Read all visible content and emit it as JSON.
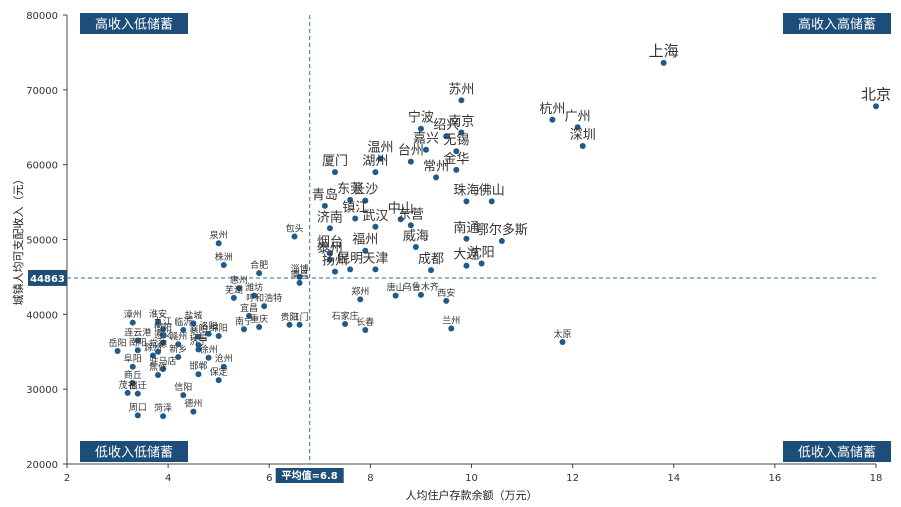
{
  "colors": {
    "point": "#1f5a8c",
    "label_box": "#1d4e7a",
    "ref_line": "#2e6fa3"
  },
  "chart_data": {
    "type": "scatter",
    "xlabel": "人均住户存款余额（万元）",
    "ylabel": "城镇人均可支配收入（元）",
    "xlim": [
      2,
      18
    ],
    "ylim": [
      20000,
      80000
    ],
    "xticks": [
      2,
      4,
      6,
      8,
      10,
      12,
      14,
      16,
      18
    ],
    "yticks": [
      20000,
      30000,
      40000,
      50000,
      60000,
      70000,
      80000
    ],
    "grid": false,
    "ref_lines": {
      "x": 6.8,
      "x_label": "平均值=6.8",
      "y": 44863,
      "y_label": "44863"
    },
    "quadrants": {
      "top_left": "高收入低储蓄",
      "top_right": "高收入高储蓄",
      "bottom_left": "低收入低储蓄",
      "bottom_right": "低收入高储蓄"
    },
    "points": [
      {
        "label": "上海",
        "x": 13.8,
        "y": 73600,
        "size": "large"
      },
      {
        "label": "北京",
        "x": 18.0,
        "y": 67800,
        "size": "large"
      },
      {
        "label": "苏州",
        "x": 9.8,
        "y": 68600,
        "size": "medium"
      },
      {
        "label": "杭州",
        "x": 11.6,
        "y": 66000,
        "size": "medium"
      },
      {
        "label": "广州",
        "x": 12.1,
        "y": 65000,
        "size": "medium"
      },
      {
        "label": "深圳",
        "x": 12.2,
        "y": 62500,
        "size": "medium"
      },
      {
        "label": "宁波",
        "x": 9.0,
        "y": 64800,
        "size": "medium"
      },
      {
        "label": "绍兴",
        "x": 9.5,
        "y": 63800,
        "size": "medium"
      },
      {
        "label": "南京",
        "x": 9.8,
        "y": 64300,
        "size": "medium"
      },
      {
        "label": "嘉兴",
        "x": 9.1,
        "y": 62000,
        "size": "medium"
      },
      {
        "label": "无锡",
        "x": 9.7,
        "y": 61800,
        "size": "medium"
      },
      {
        "label": "温州",
        "x": 8.2,
        "y": 60800,
        "size": "medium"
      },
      {
        "label": "台州",
        "x": 8.8,
        "y": 60400,
        "size": "medium"
      },
      {
        "label": "湖州",
        "x": 8.1,
        "y": 59000,
        "size": "medium"
      },
      {
        "label": "常州",
        "x": 9.3,
        "y": 58300,
        "size": "medium"
      },
      {
        "label": "金华",
        "x": 9.7,
        "y": 59300,
        "size": "medium"
      },
      {
        "label": "厦门",
        "x": 7.3,
        "y": 59000,
        "size": "medium"
      },
      {
        "label": "东莞",
        "x": 7.6,
        "y": 55300,
        "size": "medium"
      },
      {
        "label": "长沙",
        "x": 7.9,
        "y": 55200,
        "size": "medium"
      },
      {
        "label": "青岛",
        "x": 7.1,
        "y": 54500,
        "size": "medium"
      },
      {
        "label": "珠海",
        "x": 9.9,
        "y": 55100,
        "size": "medium"
      },
      {
        "label": "佛山",
        "x": 10.4,
        "y": 55100,
        "size": "medium"
      },
      {
        "label": "镇江",
        "x": 7.7,
        "y": 52800,
        "size": "medium"
      },
      {
        "label": "中山",
        "x": 8.6,
        "y": 52700,
        "size": "medium"
      },
      {
        "label": "济南",
        "x": 7.2,
        "y": 51500,
        "size": "medium"
      },
      {
        "label": "武汉",
        "x": 8.1,
        "y": 51700,
        "size": "medium"
      },
      {
        "label": "东营",
        "x": 8.8,
        "y": 51900,
        "size": "medium"
      },
      {
        "label": "南通",
        "x": 9.9,
        "y": 50100,
        "size": "medium"
      },
      {
        "label": "鄂尔多斯",
        "x": 10.6,
        "y": 49800,
        "size": "medium"
      },
      {
        "label": "烟台",
        "x": 7.2,
        "y": 48200,
        "size": "medium"
      },
      {
        "label": "福州",
        "x": 7.9,
        "y": 48500,
        "size": "medium"
      },
      {
        "label": "威海",
        "x": 8.9,
        "y": 49000,
        "size": "medium"
      },
      {
        "label": "泰州",
        "x": 7.2,
        "y": 47300,
        "size": "medium"
      },
      {
        "label": "昆明",
        "x": 7.6,
        "y": 46000,
        "size": "medium"
      },
      {
        "label": "天津",
        "x": 8.1,
        "y": 46000,
        "size": "medium"
      },
      {
        "label": "成都",
        "x": 9.2,
        "y": 45900,
        "size": "medium"
      },
      {
        "label": "大连",
        "x": 9.9,
        "y": 46500,
        "size": "medium"
      },
      {
        "label": "沈阳",
        "x": 10.2,
        "y": 46800,
        "size": "medium"
      },
      {
        "label": "扬州",
        "x": 7.3,
        "y": 45700,
        "size": "medium"
      },
      {
        "label": "包头",
        "x": 6.5,
        "y": 50400,
        "size": "small"
      },
      {
        "label": "淄博",
        "x": 6.6,
        "y": 45000,
        "size": "small"
      },
      {
        "label": "南昌",
        "x": 6.6,
        "y": 44200,
        "size": "small"
      },
      {
        "label": "泉州",
        "x": 5.0,
        "y": 49500,
        "size": "small"
      },
      {
        "label": "株洲",
        "x": 5.1,
        "y": 46600,
        "size": "small"
      },
      {
        "label": "合肥",
        "x": 5.8,
        "y": 45500,
        "size": "small"
      },
      {
        "label": "惠州",
        "x": 5.4,
        "y": 43500,
        "size": "small"
      },
      {
        "label": "芜湖",
        "x": 5.3,
        "y": 42200,
        "size": "small"
      },
      {
        "label": "潍坊",
        "x": 5.7,
        "y": 42500,
        "size": "small"
      },
      {
        "label": "呼和浩特",
        "x": 5.9,
        "y": 41100,
        "size": "small"
      },
      {
        "label": "宜昌",
        "x": 5.6,
        "y": 39800,
        "size": "small"
      },
      {
        "label": "江门",
        "x": 6.6,
        "y": 38600,
        "size": "small"
      },
      {
        "label": "贵阳",
        "x": 6.4,
        "y": 38600,
        "size": "small"
      },
      {
        "label": "南宁",
        "x": 5.5,
        "y": 38000,
        "size": "small"
      },
      {
        "label": "重庆",
        "x": 5.8,
        "y": 38300,
        "size": "small"
      },
      {
        "label": "石家庄",
        "x": 7.5,
        "y": 38700,
        "size": "small"
      },
      {
        "label": "郑州",
        "x": 7.8,
        "y": 42000,
        "size": "small"
      },
      {
        "label": "长春",
        "x": 7.9,
        "y": 37900,
        "size": "small"
      },
      {
        "label": "唐山",
        "x": 8.5,
        "y": 42500,
        "size": "small"
      },
      {
        "label": "乌鲁木齐",
        "x": 9.0,
        "y": 42600,
        "size": "small"
      },
      {
        "label": "西安",
        "x": 9.5,
        "y": 41800,
        "size": "small"
      },
      {
        "label": "兰州",
        "x": 9.6,
        "y": 38100,
        "size": "small"
      },
      {
        "label": "太原",
        "x": 11.8,
        "y": 36300,
        "size": "small"
      },
      {
        "label": "淮安",
        "x": 3.8,
        "y": 39000,
        "size": "small"
      },
      {
        "label": "盐城",
        "x": 4.5,
        "y": 38800,
        "size": "small"
      },
      {
        "label": "漳州",
        "x": 3.3,
        "y": 38900,
        "size": "small"
      },
      {
        "label": "九江",
        "x": 3.9,
        "y": 38000,
        "size": "small"
      },
      {
        "label": "临沂",
        "x": 4.3,
        "y": 37900,
        "size": "small"
      },
      {
        "label": "衡阳",
        "x": 3.9,
        "y": 37200,
        "size": "small"
      },
      {
        "label": "洛阳",
        "x": 4.8,
        "y": 37400,
        "size": "small"
      },
      {
        "label": "襄阳",
        "x": 4.6,
        "y": 37000,
        "size": "small"
      },
      {
        "label": "绵阳",
        "x": 5.0,
        "y": 37100,
        "size": "small"
      },
      {
        "label": "连云港",
        "x": 3.4,
        "y": 36500,
        "size": "small"
      },
      {
        "label": "遵义",
        "x": 3.9,
        "y": 36200,
        "size": "small"
      },
      {
        "label": "赣州",
        "x": 4.2,
        "y": 36000,
        "size": "small"
      },
      {
        "label": "许昌",
        "x": 4.6,
        "y": 35900,
        "size": "small"
      },
      {
        "label": "南阳",
        "x": 3.4,
        "y": 35200,
        "size": "small"
      },
      {
        "label": "常德",
        "x": 3.8,
        "y": 35000,
        "size": "small"
      },
      {
        "label": "济宁",
        "x": 4.6,
        "y": 35300,
        "size": "small"
      },
      {
        "label": "岳阳",
        "x": 3.0,
        "y": 35100,
        "size": "small"
      },
      {
        "label": "滁州",
        "x": 3.7,
        "y": 34500,
        "size": "small"
      },
      {
        "label": "新乡",
        "x": 4.2,
        "y": 34300,
        "size": "small"
      },
      {
        "label": "徐州",
        "x": 4.8,
        "y": 34200,
        "size": "small"
      },
      {
        "label": "沧州",
        "x": 5.1,
        "y": 33000,
        "size": "small"
      },
      {
        "label": "阜阳",
        "x": 3.3,
        "y": 33000,
        "size": "small"
      },
      {
        "label": "驻马店",
        "x": 3.9,
        "y": 32700,
        "size": "small"
      },
      {
        "label": "焦作",
        "x": 3.8,
        "y": 31900,
        "size": "small"
      },
      {
        "label": "邯郸",
        "x": 4.6,
        "y": 32000,
        "size": "small"
      },
      {
        "label": "保定",
        "x": 5.0,
        "y": 31200,
        "size": "small"
      },
      {
        "label": "商丘",
        "x": 3.3,
        "y": 30800,
        "size": "small"
      },
      {
        "label": "茂名",
        "x": 3.2,
        "y": 29500,
        "size": "small"
      },
      {
        "label": "宿迁",
        "x": 3.4,
        "y": 29400,
        "size": "small"
      },
      {
        "label": "信阳",
        "x": 4.3,
        "y": 29200,
        "size": "small"
      },
      {
        "label": "德州",
        "x": 4.5,
        "y": 27000,
        "size": "small"
      },
      {
        "label": "周口",
        "x": 3.4,
        "y": 26500,
        "size": "small"
      },
      {
        "label": "菏泽",
        "x": 3.9,
        "y": 26400,
        "size": "small"
      }
    ]
  }
}
